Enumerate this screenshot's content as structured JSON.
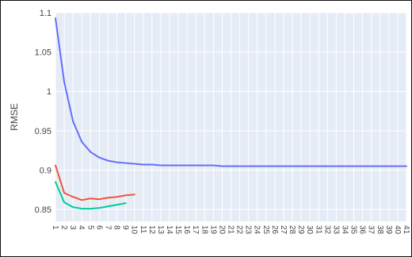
{
  "chart_data": {
    "type": "line",
    "xlabel": "",
    "ylabel": "RMSE",
    "x_categories": [
      1,
      2,
      3,
      4,
      5,
      6,
      7,
      8,
      9,
      10,
      11,
      12,
      13,
      14,
      15,
      16,
      17,
      18,
      19,
      20,
      21,
      22,
      23,
      24,
      25,
      26,
      27,
      28,
      29,
      30,
      31,
      32,
      33,
      34,
      35,
      36,
      37,
      38,
      39,
      40,
      41
    ],
    "y_ticks": [
      0.85,
      0.9,
      0.95,
      1,
      1.05,
      1.1
    ],
    "y_tick_labels": [
      "0.85",
      "0.9",
      "0.95",
      "1",
      "1.05",
      "1.1"
    ],
    "ylim": [
      0.835,
      1.1
    ],
    "grid": true,
    "background_color": "#e5ecf6",
    "series": [
      {
        "color": "#636efa",
        "x": [
          1,
          2,
          3,
          4,
          5,
          6,
          7,
          8,
          9,
          10,
          11,
          12,
          13,
          14,
          15,
          16,
          17,
          18,
          19,
          20,
          21,
          22,
          23,
          24,
          25,
          26,
          27,
          28,
          29,
          30,
          31,
          32,
          33,
          34,
          35,
          36,
          37,
          38,
          39,
          40,
          41
        ],
        "values": [
          1.093,
          1.012,
          0.962,
          0.936,
          0.923,
          0.916,
          0.912,
          0.91,
          0.909,
          0.908,
          0.907,
          0.907,
          0.906,
          0.906,
          0.906,
          0.906,
          0.906,
          0.906,
          0.906,
          0.905,
          0.905,
          0.905,
          0.905,
          0.905,
          0.905,
          0.905,
          0.905,
          0.905,
          0.905,
          0.905,
          0.905,
          0.905,
          0.905,
          0.905,
          0.905,
          0.905,
          0.905,
          0.905,
          0.905,
          0.905,
          0.905
        ]
      },
      {
        "color": "#ef553b",
        "x": [
          1,
          2,
          3,
          4,
          5,
          6,
          7,
          8,
          9,
          10
        ],
        "values": [
          0.906,
          0.871,
          0.866,
          0.862,
          0.864,
          0.863,
          0.865,
          0.866,
          0.868,
          0.869
        ]
      },
      {
        "color": "#00cc96",
        "x": [
          1,
          2,
          3,
          4,
          5,
          6,
          7,
          8,
          9
        ],
        "values": [
          0.885,
          0.859,
          0.853,
          0.851,
          0.851,
          0.852,
          0.854,
          0.856,
          0.858
        ]
      }
    ]
  }
}
